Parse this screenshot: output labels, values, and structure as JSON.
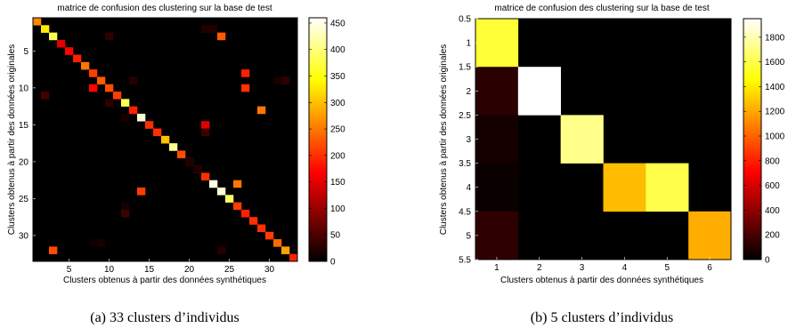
{
  "colorbar_map": "hot",
  "charts": [
    {
      "title": "matrice de confusion des clustering sur la base de test",
      "xlabel": "Clusters obtenus à partir des données synthétiques",
      "ylabel": "Clusters obtenus à partir des données originales",
      "caption": "(a)  33 clusters d’individus",
      "colorbar_ticks": [
        "450",
        "400",
        "350",
        "300",
        "250",
        "200",
        "150",
        "100",
        "50",
        "0"
      ],
      "x_ticks": [
        "5",
        "10",
        "15",
        "20",
        "25",
        "30"
      ],
      "y_ticks": [
        "5",
        "10",
        "15",
        "20",
        "25",
        "30"
      ]
    },
    {
      "title": "matrice de confusion des clustering sur la base de test",
      "xlabel": "Clusters obtenus à partir des données synthétiques",
      "ylabel": "Clusters obtenus à partir des données originales",
      "caption": "(b)  5 clusters d’individus",
      "colorbar_ticks": [
        "1800",
        "1600",
        "1400",
        "1200",
        "1000",
        "800",
        "600",
        "400",
        "200",
        "0"
      ],
      "x_ticks": [
        "1",
        "2",
        "3",
        "4",
        "5",
        "6"
      ],
      "y_ticks": [
        "0.5",
        "1",
        "1.5",
        "2",
        "2.5",
        "3",
        "3.5",
        "4",
        "4.5",
        "5",
        "5.5"
      ]
    }
  ],
  "chart_data": [
    {
      "type": "heatmap",
      "title": "matrice de confusion des clustering sur la base de test",
      "xlabel": "Clusters obtenus à partir des données synthétiques",
      "ylabel": "Clusters obtenus à partir des données originales",
      "n_rows": 33,
      "n_cols": 33,
      "xlim": [
        0.5,
        33.5
      ],
      "ylim": [
        0.5,
        33.5
      ],
      "clim": [
        0,
        460
      ],
      "colormap": "hot",
      "cells": [
        [
          1,
          1,
          260
        ],
        [
          2,
          2,
          330
        ],
        [
          3,
          3,
          380
        ],
        [
          4,
          4,
          150
        ],
        [
          5,
          5,
          170
        ],
        [
          6,
          6,
          190
        ],
        [
          7,
          7,
          250
        ],
        [
          8,
          8,
          210
        ],
        [
          9,
          9,
          230
        ],
        [
          10,
          10,
          220
        ],
        [
          11,
          11,
          210
        ],
        [
          12,
          12,
          380
        ],
        [
          13,
          13,
          190
        ],
        [
          14,
          14,
          440
        ],
        [
          15,
          15,
          200
        ],
        [
          16,
          16,
          200
        ],
        [
          17,
          17,
          300
        ],
        [
          18,
          18,
          410
        ],
        [
          19,
          19,
          220
        ],
        [
          20,
          20,
          190
        ],
        [
          21,
          21,
          190
        ],
        [
          22,
          22,
          200
        ],
        [
          23,
          23,
          450
        ],
        [
          24,
          24,
          440
        ],
        [
          25,
          25,
          390
        ],
        [
          26,
          26,
          210
        ],
        [
          27,
          27,
          190
        ],
        [
          28,
          28,
          200
        ],
        [
          29,
          29,
          200
        ],
        [
          30,
          30,
          210
        ],
        [
          31,
          31,
          240
        ],
        [
          32,
          32,
          280
        ],
        [
          33,
          33,
          190
        ],
        [
          3,
          24,
          230
        ],
        [
          3,
          10,
          30
        ],
        [
          8,
          27,
          190
        ],
        [
          9,
          32,
          30
        ],
        [
          10,
          8,
          170
        ],
        [
          10,
          27,
          200
        ],
        [
          11,
          2,
          45
        ],
        [
          13,
          29,
          250
        ],
        [
          9,
          13,
          25
        ],
        [
          12,
          10,
          30
        ],
        [
          14,
          12,
          15
        ],
        [
          15,
          22,
          150
        ],
        [
          16,
          22,
          40
        ],
        [
          20,
          20,
          20
        ],
        [
          21,
          21,
          20
        ],
        [
          23,
          26,
          250
        ],
        [
          24,
          14,
          210
        ],
        [
          27,
          12,
          40
        ],
        [
          26,
          12,
          15
        ],
        [
          32,
          3,
          220
        ],
        [
          32,
          24,
          25
        ],
        [
          31,
          9,
          15
        ],
        [
          31,
          8,
          10
        ],
        [
          2,
          23,
          20
        ],
        [
          2,
          22,
          20
        ],
        [
          9,
          31,
          15
        ]
      ]
    },
    {
      "type": "heatmap",
      "title": "matrice de confusion des clustering sur la base de test",
      "xlabel": "Clusters obtenus à partir des données synthétiques",
      "ylabel": "Clusters obtenus à partir des données originales",
      "n_rows": 5,
      "n_cols": 6,
      "xlim": [
        0.5,
        6.5
      ],
      "ylim": [
        0.5,
        5.5
      ],
      "clim": [
        0,
        1950
      ],
      "colormap": "hot",
      "cells": [
        [
          1,
          1,
          1560
        ],
        [
          1,
          2,
          0
        ],
        [
          1,
          3,
          0
        ],
        [
          1,
          4,
          0
        ],
        [
          1,
          5,
          0
        ],
        [
          1,
          6,
          0
        ],
        [
          2,
          1,
          120
        ],
        [
          2,
          2,
          1950
        ],
        [
          2,
          3,
          0
        ],
        [
          2,
          4,
          0
        ],
        [
          2,
          5,
          0
        ],
        [
          2,
          6,
          0
        ],
        [
          3,
          1,
          60
        ],
        [
          3,
          2,
          0
        ],
        [
          3,
          3,
          1720
        ],
        [
          3,
          4,
          0
        ],
        [
          3,
          5,
          0
        ],
        [
          3,
          6,
          0
        ],
        [
          4,
          1,
          30
        ],
        [
          4,
          2,
          0
        ],
        [
          4,
          3,
          0
        ],
        [
          4,
          4,
          1260
        ],
        [
          4,
          5,
          1600
        ],
        [
          4,
          6,
          0
        ],
        [
          5,
          1,
          130
        ],
        [
          5,
          2,
          0
        ],
        [
          5,
          3,
          0
        ],
        [
          5,
          4,
          0
        ],
        [
          5,
          5,
          0
        ],
        [
          5,
          6,
          1220
        ]
      ]
    }
  ]
}
